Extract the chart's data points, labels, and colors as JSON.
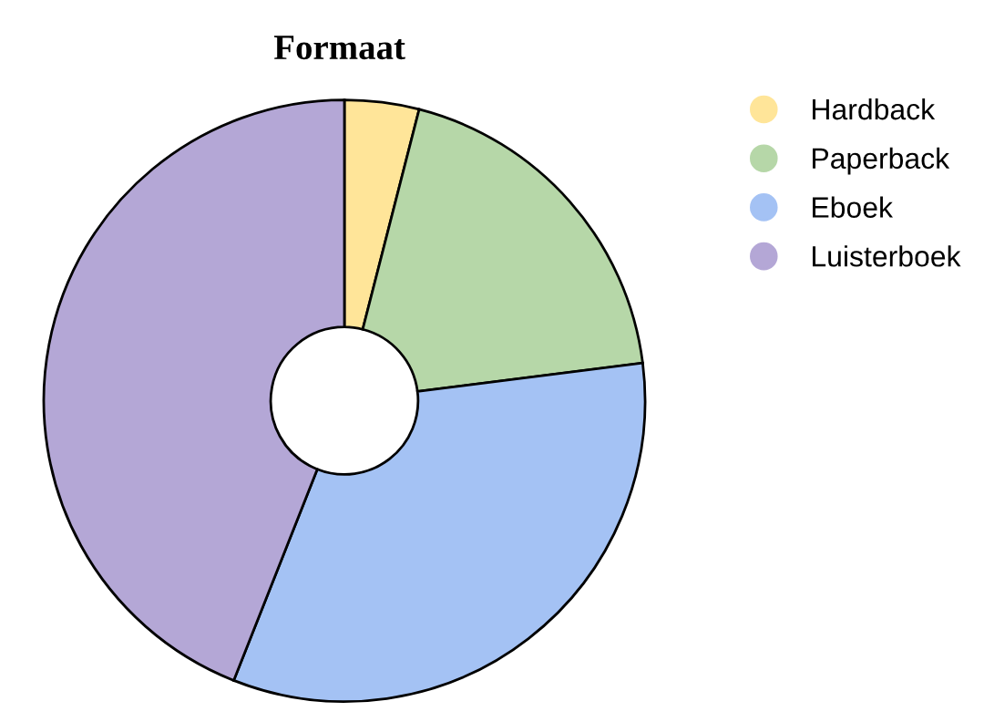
{
  "chart_data": {
    "type": "donut",
    "title": "Formaat",
    "categories": [
      "Hardback",
      "Paperback",
      "Eboek",
      "Luisterboek"
    ],
    "values": [
      4,
      19,
      33,
      44
    ],
    "colors": [
      "#ffe599",
      "#b6d7a8",
      "#a4c2f4",
      "#b4a7d6"
    ],
    "legend": "right"
  }
}
